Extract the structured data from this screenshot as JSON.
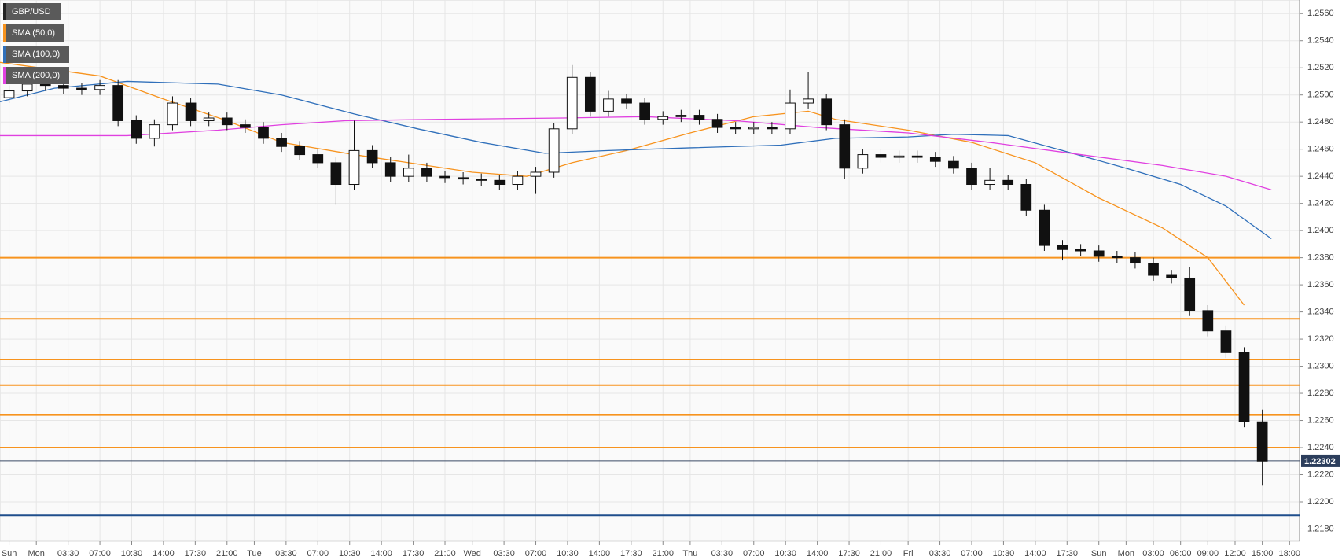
{
  "chart_data": {
    "type": "candlestick",
    "name": "GBP/USD",
    "color": "#222222",
    "x": [
      -3,
      -1,
      1,
      3,
      5,
      7,
      9,
      11,
      13,
      15,
      17,
      19,
      21,
      23,
      25,
      27,
      29,
      31,
      33,
      35,
      37,
      39,
      41,
      43,
      45,
      47,
      49,
      51,
      53,
      55,
      57,
      59,
      61,
      63,
      65,
      67,
      69,
      71,
      73,
      75,
      77,
      79,
      81,
      83,
      85,
      87,
      89,
      91,
      93,
      95,
      97,
      99,
      101,
      103,
      105,
      107,
      109,
      111,
      113,
      115,
      117,
      119,
      121,
      123,
      125,
      127,
      129,
      131,
      133,
      135
    ],
    "open": [
      1.2498,
      1.2503,
      1.2508,
      1.2507,
      1.2505,
      1.2504,
      1.2507,
      1.2481,
      1.2468,
      1.2478,
      1.2494,
      1.2481,
      1.2483,
      1.2478,
      1.2476,
      1.2468,
      1.2462,
      1.2456,
      1.245,
      1.2434,
      1.2459,
      1.245,
      1.244,
      1.2446,
      1.244,
      1.2439,
      1.2438,
      1.2437,
      1.2434,
      1.244,
      1.2443,
      1.2475,
      1.2513,
      1.2488,
      1.2497,
      1.2494,
      1.2482,
      1.2484,
      1.2485,
      1.2482,
      1.2476,
      1.2475,
      1.2476,
      1.2475,
      1.2494,
      1.2497,
      1.2478,
      1.2446,
      1.2456,
      1.2454,
      1.2455,
      1.2454,
      1.2451,
      1.2446,
      1.2434,
      1.2437,
      1.2434,
      1.2415,
      1.2389,
      1.2386,
      1.2385,
      1.2381,
      1.238,
      1.2376,
      1.2367,
      1.2365,
      1.2341,
      1.2326,
      1.231,
      1.2259
    ],
    "high": [
      1.2507,
      1.2512,
      1.2512,
      1.2511,
      1.2509,
      1.2511,
      1.2511,
      1.2485,
      1.2482,
      1.2499,
      1.2498,
      1.2487,
      1.2487,
      1.2482,
      1.248,
      1.2472,
      1.2466,
      1.246,
      1.2454,
      1.2481,
      1.2463,
      1.2454,
      1.2456,
      1.245,
      1.2444,
      1.2443,
      1.2442,
      1.2441,
      1.2444,
      1.2447,
      1.2479,
      1.2522,
      1.2517,
      1.2503,
      1.2501,
      1.2498,
      1.2488,
      1.2489,
      1.2489,
      1.2486,
      1.248,
      1.248,
      1.248,
      1.2504,
      1.2517,
      1.2501,
      1.2482,
      1.246,
      1.246,
      1.2459,
      1.2459,
      1.2458,
      1.2455,
      1.245,
      1.2446,
      1.2441,
      1.2438,
      1.2419,
      1.2393,
      1.239,
      1.2389,
      1.2385,
      1.2384,
      1.238,
      1.2371,
      1.2373,
      1.2345,
      1.233,
      1.2314,
      1.2268
    ],
    "low": [
      1.2494,
      1.2499,
      1.2503,
      1.2501,
      1.25,
      1.25,
      1.2477,
      1.2464,
      1.2462,
      1.2474,
      1.2477,
      1.2477,
      1.2474,
      1.2472,
      1.2464,
      1.2458,
      1.2452,
      1.2446,
      1.2419,
      1.243,
      1.2446,
      1.2436,
      1.2436,
      1.2436,
      1.2435,
      1.2434,
      1.2433,
      1.243,
      1.243,
      1.2427,
      1.2439,
      1.2471,
      1.2484,
      1.2484,
      1.249,
      1.2478,
      1.2478,
      1.248,
      1.2478,
      1.2472,
      1.2471,
      1.2471,
      1.2471,
      1.2471,
      1.249,
      1.2474,
      1.2438,
      1.2442,
      1.245,
      1.245,
      1.245,
      1.2447,
      1.2442,
      1.243,
      1.243,
      1.243,
      1.2411,
      1.2385,
      1.2378,
      1.2381,
      1.2377,
      1.2376,
      1.2372,
      1.2363,
      1.2361,
      1.2337,
      1.2322,
      1.2306,
      1.2255,
      1.2212
    ],
    "close": [
      1.2503,
      1.2508,
      1.2507,
      1.2505,
      1.2504,
      1.2507,
      1.2481,
      1.2468,
      1.2478,
      1.2494,
      1.2481,
      1.2483,
      1.2478,
      1.2476,
      1.2468,
      1.2462,
      1.2456,
      1.245,
      1.2434,
      1.2459,
      1.245,
      1.244,
      1.2446,
      1.244,
      1.2439,
      1.2438,
      1.2437,
      1.2434,
      1.244,
      1.2443,
      1.2475,
      1.2513,
      1.2488,
      1.2497,
      1.2494,
      1.2482,
      1.2484,
      1.2485,
      1.2482,
      1.2476,
      1.2475,
      1.2476,
      1.2475,
      1.2494,
      1.2497,
      1.2478,
      1.2446,
      1.2456,
      1.2454,
      1.2455,
      1.2454,
      1.2451,
      1.2446,
      1.2434,
      1.2437,
      1.2434,
      1.2415,
      1.2389,
      1.2386,
      1.2385,
      1.2381,
      1.238,
      1.2376,
      1.2367,
      1.2365,
      1.2341,
      1.2326,
      1.231,
      1.2259,
      1.223
    ],
    "sma": [
      {
        "name": "SMA (50,0)",
        "color": "#f7931e",
        "x": [
          -4,
          7,
          14,
          21,
          27,
          35,
          41,
          48,
          54,
          59,
          65,
          72,
          79,
          85,
          88,
          96,
          103,
          110,
          117,
          124,
          129,
          133
        ],
        "values": [
          1.2524,
          1.2514,
          1.2497,
          1.2481,
          1.2465,
          1.2456,
          1.245,
          1.2443,
          1.244,
          1.245,
          1.2459,
          1.2472,
          1.2484,
          1.2488,
          1.2482,
          1.2474,
          1.2465,
          1.245,
          1.2424,
          1.2402,
          1.238,
          1.2345
        ]
      },
      {
        "name": "SMA (100,0)",
        "color": "#2f6fba",
        "x": [
          -4,
          2,
          10,
          20,
          27,
          35,
          42,
          49,
          56,
          63,
          72,
          82,
          88,
          96,
          101,
          107,
          113,
          120,
          126,
          131,
          136
        ],
        "values": [
          1.2495,
          1.2505,
          1.251,
          1.2508,
          1.25,
          1.2486,
          1.2475,
          1.2465,
          1.2457,
          1.2459,
          1.2461,
          1.2463,
          1.2468,
          1.2469,
          1.2471,
          1.247,
          1.2459,
          1.2446,
          1.2434,
          1.2418,
          1.2394
        ]
      },
      {
        "name": "SMA (200,0)",
        "color": "#e040e0",
        "x": [
          -4,
          10,
          20,
          27,
          34,
          44,
          58,
          67,
          77,
          86,
          96,
          105,
          115,
          124,
          131,
          136
        ],
        "values": [
          1.247,
          1.247,
          1.2474,
          1.2478,
          1.2481,
          1.2482,
          1.2483,
          1.2484,
          1.2481,
          1.2476,
          1.2472,
          1.2465,
          1.2456,
          1.2448,
          1.244,
          1.243
        ]
      }
    ],
    "levels": [
      {
        "value": 1.238,
        "color": "#f7931e"
      },
      {
        "value": 1.2335,
        "color": "#f7931e"
      },
      {
        "value": 1.2305,
        "color": "#f7931e"
      },
      {
        "value": 1.2286,
        "color": "#f7931e"
      },
      {
        "value": 1.2264,
        "color": "#f7931e"
      },
      {
        "value": 1.224,
        "color": "#f7931e"
      },
      {
        "value": 1.219,
        "color": "#1f4e8c"
      }
    ],
    "last_price": 1.22302,
    "xlim": [
      -4,
      139.1
    ],
    "ylim": [
      1.2171,
      1.257
    ],
    "xticks": [
      {
        "value": -3,
        "label": "Sun"
      },
      {
        "value": 0,
        "label": "Mon"
      },
      {
        "value": 3.5,
        "label": "03:30"
      },
      {
        "value": 7,
        "label": "07:00"
      },
      {
        "value": 10.5,
        "label": "10:30"
      },
      {
        "value": 14,
        "label": "14:00"
      },
      {
        "value": 17.5,
        "label": "17:30"
      },
      {
        "value": 21,
        "label": "21:00"
      },
      {
        "value": 24,
        "label": "Tue"
      },
      {
        "value": 27.5,
        "label": "03:30"
      },
      {
        "value": 31,
        "label": "07:00"
      },
      {
        "value": 34.5,
        "label": "10:30"
      },
      {
        "value": 38,
        "label": "14:00"
      },
      {
        "value": 41.5,
        "label": "17:30"
      },
      {
        "value": 45,
        "label": "21:00"
      },
      {
        "value": 48,
        "label": "Wed"
      },
      {
        "value": 51.5,
        "label": "03:30"
      },
      {
        "value": 55,
        "label": "07:00"
      },
      {
        "value": 58.5,
        "label": "10:30"
      },
      {
        "value": 62,
        "label": "14:00"
      },
      {
        "value": 65.5,
        "label": "17:30"
      },
      {
        "value": 69,
        "label": "21:00"
      },
      {
        "value": 72,
        "label": "Thu"
      },
      {
        "value": 75.5,
        "label": "03:30"
      },
      {
        "value": 79,
        "label": "07:00"
      },
      {
        "value": 82.5,
        "label": "10:30"
      },
      {
        "value": 86,
        "label": "14:00"
      },
      {
        "value": 89.5,
        "label": "17:30"
      },
      {
        "value": 93,
        "label": "21:00"
      },
      {
        "value": 96,
        "label": "Fri"
      },
      {
        "value": 99.5,
        "label": "03:30"
      },
      {
        "value": 103,
        "label": "07:00"
      },
      {
        "value": 106.5,
        "label": "10:30"
      },
      {
        "value": 110,
        "label": "14:00"
      },
      {
        "value": 113.5,
        "label": "17:30"
      },
      {
        "value": 117,
        "label": "Sun"
      },
      {
        "value": 120,
        "label": "Mon"
      },
      {
        "value": 123,
        "label": "03:00"
      },
      {
        "value": 126,
        "label": "06:00"
      },
      {
        "value": 129,
        "label": "09:00"
      },
      {
        "value": 132,
        "label": "12:00"
      },
      {
        "value": 135,
        "label": "15:00"
      },
      {
        "value": 138,
        "label": "18:00"
      }
    ],
    "yticks": [
      {
        "value": 1.218,
        "label": "1.2180"
      },
      {
        "value": 1.22,
        "label": "1.2200"
      },
      {
        "value": 1.222,
        "label": "1.2220"
      },
      {
        "value": 1.224,
        "label": "1.2240"
      },
      {
        "value": 1.226,
        "label": "1.2260"
      },
      {
        "value": 1.228,
        "label": "1.2280"
      },
      {
        "value": 1.23,
        "label": "1.2300"
      },
      {
        "value": 1.232,
        "label": "1.2320"
      },
      {
        "value": 1.234,
        "label": "1.2340"
      },
      {
        "value": 1.236,
        "label": "1.2360"
      },
      {
        "value": 1.238,
        "label": "1.2380"
      },
      {
        "value": 1.24,
        "label": "1.2400"
      },
      {
        "value": 1.242,
        "label": "1.2420"
      },
      {
        "value": 1.244,
        "label": "1.2440"
      },
      {
        "value": 1.246,
        "label": "1.2460"
      },
      {
        "value": 1.248,
        "label": "1.2480"
      },
      {
        "value": 1.25,
        "label": "1.2500"
      },
      {
        "value": 1.252,
        "label": "1.2520"
      },
      {
        "value": 1.254,
        "label": "1.2540"
      },
      {
        "value": 1.256,
        "label": "1.2560"
      }
    ],
    "grid": true
  }
}
